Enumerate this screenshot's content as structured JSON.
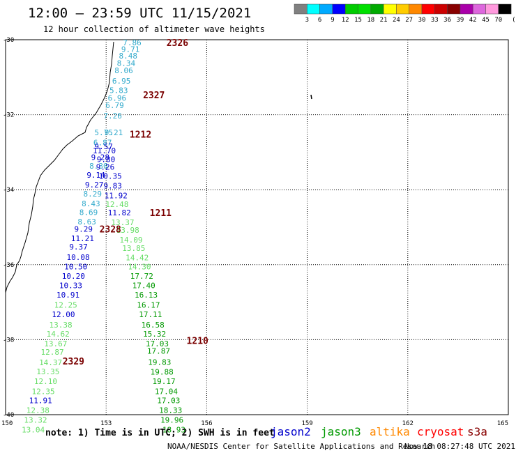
{
  "header": {
    "title": "12:00 — 23:59 UTC 11/15/2021",
    "subtitle": "12 hour collection of altimeter wave heights"
  },
  "colorbar": {
    "unit": "(ft)",
    "colors": [
      "#808080",
      "#00ffff",
      "#00aaff",
      "#0000ff",
      "#00cc00",
      "#00e000",
      "#00aa00",
      "#ffff00",
      "#ffcc00",
      "#ff8800",
      "#ff0000",
      "#cc0000",
      "#880000",
      "#aa00aa",
      "#dd66dd",
      "#ff99dd",
      "#000000"
    ],
    "labels": [
      "3",
      "6",
      "9",
      "12",
      "15",
      "18",
      "21",
      "24",
      "27",
      "30",
      "33",
      "36",
      "39",
      "42",
      "45",
      "70"
    ]
  },
  "axes": {
    "lat_ticks": [
      "-30",
      "-32",
      "-34",
      "-36",
      "-38",
      "-40"
    ],
    "lon_ticks": [
      "150",
      "153",
      "156",
      "159",
      "162",
      "165"
    ]
  },
  "legend": {
    "note": "note: 1) Time is in UTC; 2) SWH is in feet",
    "satellites": [
      {
        "name": "jason2",
        "color": "#0000cc"
      },
      {
        "name": "jason3",
        "color": "#009900"
      },
      {
        "name": "altika",
        "color": "#ff8800"
      },
      {
        "name": "cryosat",
        "color": "#ff0000"
      },
      {
        "name": "s3a",
        "color": "#880000"
      }
    ]
  },
  "footer": {
    "credit": "NOAA/NESDIS Center for Satellite Applications and Research",
    "timestamp": "Nov 18 08:27:48 UTC 2021"
  },
  "passes": [
    {
      "id": "2326",
      "lon": 154.8,
      "lat": -30.07
    },
    {
      "id": "2327",
      "lon": 154.1,
      "lat": -31.47
    },
    {
      "id": "1212",
      "lon": 153.7,
      "lat": -32.52
    },
    {
      "id": "1211",
      "lon": 154.3,
      "lat": -34.61
    },
    {
      "id": "2328",
      "lon": 152.8,
      "lat": -35.05
    },
    {
      "id": "1210",
      "lon": 155.4,
      "lat": -38.02
    },
    {
      "id": "2329",
      "lon": 151.7,
      "lat": -38.57
    }
  ],
  "observations": [
    {
      "v": "7.86",
      "c": "#33aacc",
      "lon": 153.5,
      "lat": -30.07
    },
    {
      "v": "9.71",
      "c": "#33aacc",
      "lon": 153.45,
      "lat": -30.25
    },
    {
      "v": "8.48",
      "c": "#33aacc",
      "lon": 153.38,
      "lat": -30.43
    },
    {
      "v": "8.34",
      "c": "#33aacc",
      "lon": 153.32,
      "lat": -30.62
    },
    {
      "v": "8.06",
      "c": "#33aacc",
      "lon": 153.25,
      "lat": -30.82
    },
    {
      "v": "6.95",
      "c": "#33aacc",
      "lon": 153.18,
      "lat": -31.1
    },
    {
      "v": "5.83",
      "c": "#33aacc",
      "lon": 153.1,
      "lat": -31.35
    },
    {
      "v": "6.96",
      "c": "#33aacc",
      "lon": 153.05,
      "lat": -31.55
    },
    {
      "v": "6.79",
      "c": "#33aacc",
      "lon": 152.98,
      "lat": -31.75
    },
    {
      "v": "7.26",
      "c": "#33aacc",
      "lon": 152.92,
      "lat": -32.03
    },
    {
      "v": "5.75",
      "c": "#33aacc",
      "lon": 152.65,
      "lat": -32.47
    },
    {
      "v": "9.21",
      "c": "#33aacc",
      "lon": 152.95,
      "lat": -32.47
    },
    {
      "v": "6.87",
      "c": "#33aacc",
      "lon": 152.62,
      "lat": -32.74
    },
    {
      "v": "9.57",
      "c": "#0000cc",
      "lon": 152.65,
      "lat": -32.84
    },
    {
      "v": "11.70",
      "c": "#0000cc",
      "lon": 152.6,
      "lat": -32.96
    },
    {
      "v": "9.28",
      "c": "#0000cc",
      "lon": 152.55,
      "lat": -33.13
    },
    {
      "v": "9.80",
      "c": "#0000cc",
      "lon": 152.72,
      "lat": -33.19
    },
    {
      "v": "8.30",
      "c": "#33aacc",
      "lon": 152.5,
      "lat": -33.36
    },
    {
      "v": "9.26",
      "c": "#0000cc",
      "lon": 152.7,
      "lat": -33.39
    },
    {
      "v": "9.14",
      "c": "#0000cc",
      "lon": 152.42,
      "lat": -33.61
    },
    {
      "v": "10.35",
      "c": "#0000cc",
      "lon": 152.78,
      "lat": -33.63
    },
    {
      "v": "9.27",
      "c": "#0000cc",
      "lon": 152.37,
      "lat": -33.87
    },
    {
      "v": "9.83",
      "c": "#0000cc",
      "lon": 152.92,
      "lat": -33.89
    },
    {
      "v": "8.29",
      "c": "#33aacc",
      "lon": 152.32,
      "lat": -34.11
    },
    {
      "v": "11.92",
      "c": "#0000cc",
      "lon": 152.95,
      "lat": -34.15
    },
    {
      "v": "8.43",
      "c": "#33aacc",
      "lon": 152.27,
      "lat": -34.37
    },
    {
      "v": "12.48",
      "c": "#66dd66",
      "lon": 152.98,
      "lat": -34.39
    },
    {
      "v": "8.69",
      "c": "#33aacc",
      "lon": 152.2,
      "lat": -34.6
    },
    {
      "v": "11.82",
      "c": "#0000cc",
      "lon": 153.05,
      "lat": -34.61
    },
    {
      "v": "8.63",
      "c": "#33aacc",
      "lon": 152.15,
      "lat": -34.85
    },
    {
      "v": "13.37",
      "c": "#66dd66",
      "lon": 153.15,
      "lat": -34.87
    },
    {
      "v": "9.29",
      "c": "#0000cc",
      "lon": 152.05,
      "lat": -35.05
    },
    {
      "v": "13.98",
      "c": "#66dd66",
      "lon": 153.3,
      "lat": -35.07
    },
    {
      "v": "11.21",
      "c": "#0000cc",
      "lon": 151.95,
      "lat": -35.3
    },
    {
      "v": "14.09",
      "c": "#66dd66",
      "lon": 153.4,
      "lat": -35.33
    },
    {
      "v": "9.37",
      "c": "#0000cc",
      "lon": 151.9,
      "lat": -35.52
    },
    {
      "v": "13.85",
      "c": "#66dd66",
      "lon": 153.48,
      "lat": -35.56
    },
    {
      "v": "10.08",
      "c": "#0000cc",
      "lon": 151.82,
      "lat": -35.8
    },
    {
      "v": "14.42",
      "c": "#66dd66",
      "lon": 153.58,
      "lat": -35.81
    },
    {
      "v": "10.50",
      "c": "#0000cc",
      "lon": 151.75,
      "lat": -36.05
    },
    {
      "v": "14.30",
      "c": "#66dd66",
      "lon": 153.65,
      "lat": -36.05
    },
    {
      "v": "10.20",
      "c": "#0000cc",
      "lon": 151.68,
      "lat": -36.3
    },
    {
      "v": "17.72",
      "c": "#009900",
      "lon": 153.72,
      "lat": -36.3
    },
    {
      "v": "10.33",
      "c": "#0000cc",
      "lon": 151.6,
      "lat": -36.55
    },
    {
      "v": "17.40",
      "c": "#009900",
      "lon": 153.78,
      "lat": -36.55
    },
    {
      "v": "10.91",
      "c": "#0000cc",
      "lon": 151.52,
      "lat": -36.8
    },
    {
      "v": "16.13",
      "c": "#009900",
      "lon": 153.85,
      "lat": -36.8
    },
    {
      "v": "12.25",
      "c": "#66dd66",
      "lon": 151.45,
      "lat": -37.07
    },
    {
      "v": "16.17",
      "c": "#009900",
      "lon": 153.92,
      "lat": -37.07
    },
    {
      "v": "12.00",
      "c": "#0000cc",
      "lon": 151.38,
      "lat": -37.32
    },
    {
      "v": "17.11",
      "c": "#009900",
      "lon": 153.98,
      "lat": -37.32
    },
    {
      "v": "13.38",
      "c": "#66dd66",
      "lon": 151.3,
      "lat": -37.6
    },
    {
      "v": "16.58",
      "c": "#009900",
      "lon": 154.05,
      "lat": -37.6
    },
    {
      "v": "14.62",
      "c": "#66dd66",
      "lon": 151.22,
      "lat": -37.84
    },
    {
      "v": "15.32",
      "c": "#009900",
      "lon": 154.1,
      "lat": -37.84
    },
    {
      "v": "13.67",
      "c": "#66dd66",
      "lon": 151.15,
      "lat": -38.1
    },
    {
      "v": "17.03",
      "c": "#009900",
      "lon": 154.18,
      "lat": -38.1
    },
    {
      "v": "12.87",
      "c": "#66dd66",
      "lon": 151.05,
      "lat": -38.33
    },
    {
      "v": "17.87",
      "c": "#009900",
      "lon": 154.22,
      "lat": -38.3
    },
    {
      "v": "14.37",
      "c": "#66dd66",
      "lon": 151.0,
      "lat": -38.61
    },
    {
      "v": "19.83",
      "c": "#009900",
      "lon": 154.25,
      "lat": -38.6
    },
    {
      "v": "13.35",
      "c": "#66dd66",
      "lon": 150.92,
      "lat": -38.85
    },
    {
      "v": "19.88",
      "c": "#009900",
      "lon": 154.32,
      "lat": -38.86
    },
    {
      "v": "12.10",
      "c": "#66dd66",
      "lon": 150.85,
      "lat": -39.11
    },
    {
      "v": "19.17",
      "c": "#009900",
      "lon": 154.38,
      "lat": -39.11
    },
    {
      "v": "12.35",
      "c": "#66dd66",
      "lon": 150.78,
      "lat": -39.38
    },
    {
      "v": "17.04",
      "c": "#009900",
      "lon": 154.45,
      "lat": -39.38
    },
    {
      "v": "11.91",
      "c": "#0000cc",
      "lon": 150.7,
      "lat": -39.62
    },
    {
      "v": "17.03",
      "c": "#009900",
      "lon": 154.52,
      "lat": -39.62
    },
    {
      "v": "12.38",
      "c": "#66dd66",
      "lon": 150.62,
      "lat": -39.88
    },
    {
      "v": "18.33",
      "c": "#009900",
      "lon": 154.58,
      "lat": -39.88
    },
    {
      "v": "13.32",
      "c": "#66dd66",
      "lon": 150.55,
      "lat": -40.14
    },
    {
      "v": "19.96",
      "c": "#009900",
      "lon": 154.62,
      "lat": -40.14
    },
    {
      "v": "13.04",
      "c": "#66dd66",
      "lon": 150.48,
      "lat": -40.4
    },
    {
      "v": "18.93",
      "c": "#009900",
      "lon": 154.68,
      "lat": -40.4
    }
  ]
}
